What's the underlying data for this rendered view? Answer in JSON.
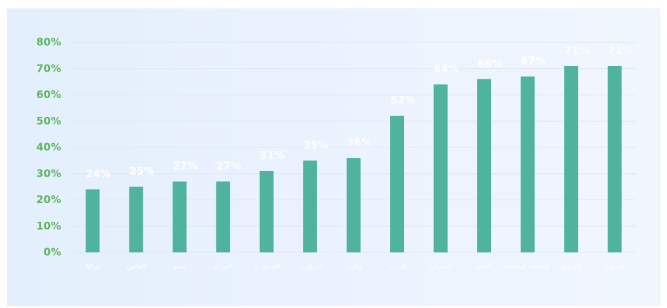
{
  "chart_data": {
    "type": "bar",
    "categories": [
      "تركيا",
      "الفلبين",
      "مصر",
      "العراق",
      "السعودية",
      "البرازيل",
      "ماليزيا",
      "فرنسا",
      "أستراليا",
      "ألمانيا",
      "المملكة المتحدة",
      "النرويج",
      "السويد"
    ],
    "values": [
      24,
      25,
      27,
      27,
      31,
      35,
      36,
      52,
      64,
      66,
      67,
      71,
      71
    ],
    "value_labels": [
      "24%",
      "25%",
      "27%",
      "27%",
      "31%",
      "35%",
      "36%",
      "52%",
      "64%",
      "66%",
      "67%",
      "71%",
      "71%"
    ],
    "color": "#4fb39e",
    "ylim": [
      0,
      80
    ],
    "yticks": [
      {
        "value": 0,
        "label": "0%"
      },
      {
        "value": 10,
        "label": "10%"
      },
      {
        "value": 20,
        "label": "20%"
      },
      {
        "value": 30,
        "label": "30%"
      },
      {
        "value": 40,
        "label": "40%"
      },
      {
        "value": 50,
        "label": "50%"
      },
      {
        "value": 60,
        "label": "60%"
      },
      {
        "value": 70,
        "label": "70%"
      },
      {
        "value": 80,
        "label": "80%"
      }
    ],
    "grid": true
  }
}
